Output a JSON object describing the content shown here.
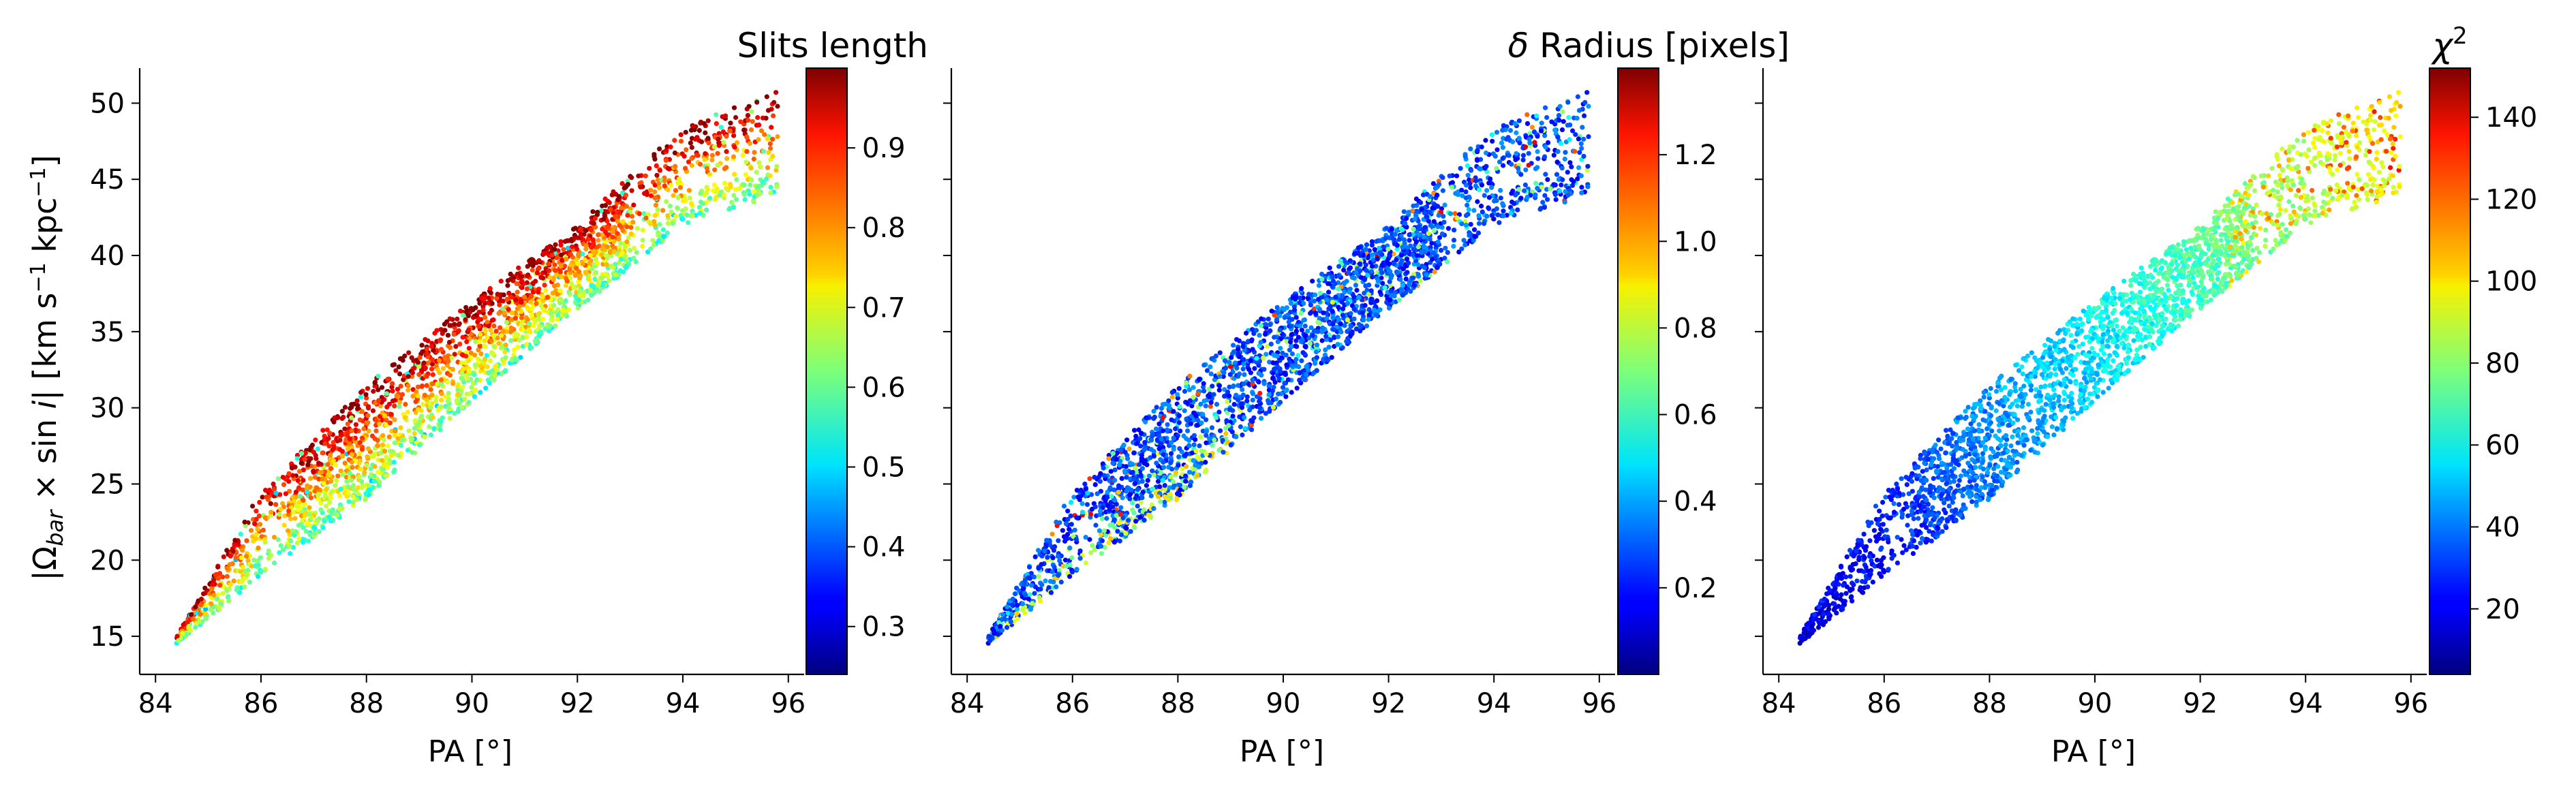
{
  "chart_data": [
    {
      "type": "scatter",
      "xlabel": "PA [°]",
      "ylabel": "|Ω_bar × sin i|  [km s⁻¹ kpc⁻¹]",
      "xlim": [
        83.7,
        96.3
      ],
      "ylim": [
        12.5,
        52.3
      ],
      "xticks": [
        84,
        86,
        88,
        90,
        92,
        94,
        96
      ],
      "yticks": [
        15,
        20,
        25,
        30,
        35,
        40,
        45,
        50
      ],
      "colorbar": {
        "label": "Slits length",
        "range": [
          0.24,
          1.0
        ],
        "ticks": [
          0.3,
          0.4,
          0.5,
          0.6,
          0.7,
          0.8,
          0.9
        ],
        "colormap": "jet"
      },
      "trend": {
        "lower_edge": [
          [
            84.4,
            14.5
          ],
          [
            86,
            19
          ],
          [
            88,
            24
          ],
          [
            90,
            30.5
          ],
          [
            92,
            36.5
          ],
          [
            94,
            42
          ],
          [
            95.8,
            44
          ]
        ],
        "upper_edge": [
          [
            84.4,
            15
          ],
          [
            86,
            24.5
          ],
          [
            88,
            31.5
          ],
          [
            90,
            37
          ],
          [
            92,
            42
          ],
          [
            94,
            48.5
          ],
          [
            96,
            51
          ]
        ],
        "color_gradient": "high values (dark red) along upper edge, low values (yellow/green) along lower edge"
      }
    },
    {
      "type": "scatter",
      "xlabel": "PA [°]",
      "xlim": [
        83.7,
        96.3
      ],
      "ylim": [
        12.5,
        52.3
      ],
      "xticks": [
        84,
        86,
        88,
        90,
        92,
        94,
        96
      ],
      "colorbar": {
        "label": "δ Radius [pixels]",
        "range": [
          0.0,
          1.4
        ],
        "ticks": [
          0.2,
          0.4,
          0.6,
          0.8,
          1.0,
          1.2
        ],
        "colormap": "jet"
      },
      "trend": {
        "lower_edge": [
          [
            84.4,
            14.5
          ],
          [
            86,
            19
          ],
          [
            88,
            24
          ],
          [
            90,
            30.5
          ],
          [
            92,
            36.5
          ],
          [
            94,
            42
          ],
          [
            95.8,
            44
          ]
        ],
        "upper_edge": [
          [
            84.4,
            15
          ],
          [
            86,
            24.5
          ],
          [
            88,
            31.5
          ],
          [
            90,
            37
          ],
          [
            92,
            42
          ],
          [
            94,
            48.5
          ],
          [
            96,
            51
          ]
        ],
        "color_gradient": "mostly low values (blue), scattered higher values"
      }
    },
    {
      "type": "scatter",
      "xlabel": "PA [°]",
      "xlim": [
        83.7,
        96.3
      ],
      "ylim": [
        12.5,
        52.3
      ],
      "xticks": [
        84,
        86,
        88,
        90,
        92,
        94,
        96
      ],
      "colorbar": {
        "label": "χ²",
        "range": [
          4,
          152
        ],
        "ticks": [
          20,
          40,
          60,
          80,
          100,
          120,
          140
        ],
        "colormap": "jet"
      },
      "trend": {
        "lower_edge": [
          [
            84.4,
            14.5
          ],
          [
            86,
            19
          ],
          [
            88,
            24
          ],
          [
            90,
            30.5
          ],
          [
            92,
            36.5
          ],
          [
            94,
            42
          ],
          [
            95.8,
            44
          ]
        ],
        "upper_edge": [
          [
            84.4,
            15
          ],
          [
            86,
            24.5
          ],
          [
            88,
            31.5
          ],
          [
            90,
            37
          ],
          [
            92,
            42
          ],
          [
            94,
            48.5
          ],
          [
            96,
            51
          ]
        ],
        "color_gradient": "increases with PA: dark blue at low PA, cyan/green/yellow at high PA"
      }
    }
  ]
}
